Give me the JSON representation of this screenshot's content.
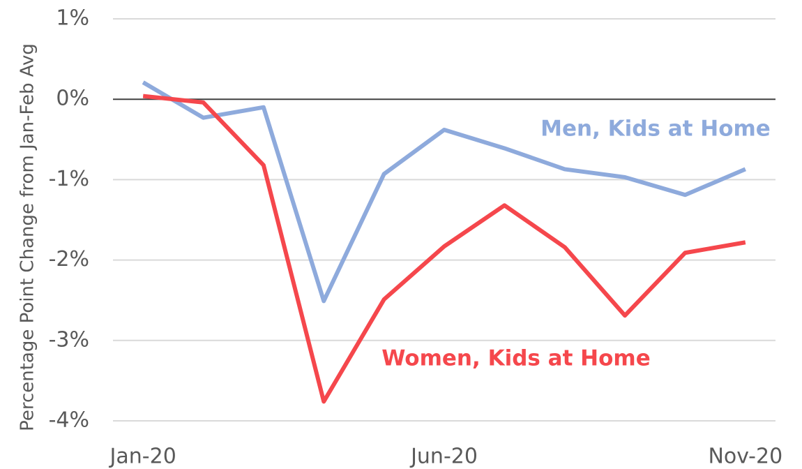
{
  "chart_data": {
    "type": "line",
    "y_label": "Percentage Point Change from Jan-Feb Avg",
    "categories": [
      "Jan-20",
      null,
      null,
      null,
      null,
      "Jun-20",
      null,
      null,
      null,
      null,
      "Nov-20"
    ],
    "series": [
      {
        "name": "Men, Kids at Home",
        "color": "#8eaadc",
        "values": [
          0.21,
          -0.23,
          -0.1,
          -2.51,
          -0.93,
          -0.38,
          -0.61,
          -0.87,
          -0.97,
          -1.19,
          -0.87
        ]
      },
      {
        "name": "Women, Kids at Home",
        "color": "#f5474c",
        "values": [
          0.04,
          -0.04,
          -0.82,
          -3.76,
          -2.49,
          -1.83,
          -1.32,
          -1.84,
          -2.69,
          -1.91,
          -1.78
        ]
      }
    ],
    "ylim": [
      -4,
      1
    ],
    "yticks": [
      {
        "value": 1,
        "label": "1%"
      },
      {
        "value": 0,
        "label": "0%"
      },
      {
        "value": -1,
        "label": "-1%"
      },
      {
        "value": -2,
        "label": "-2%"
      },
      {
        "value": -3,
        "label": "-3%"
      },
      {
        "value": -4,
        "label": "-4%"
      }
    ],
    "grid": true
  }
}
